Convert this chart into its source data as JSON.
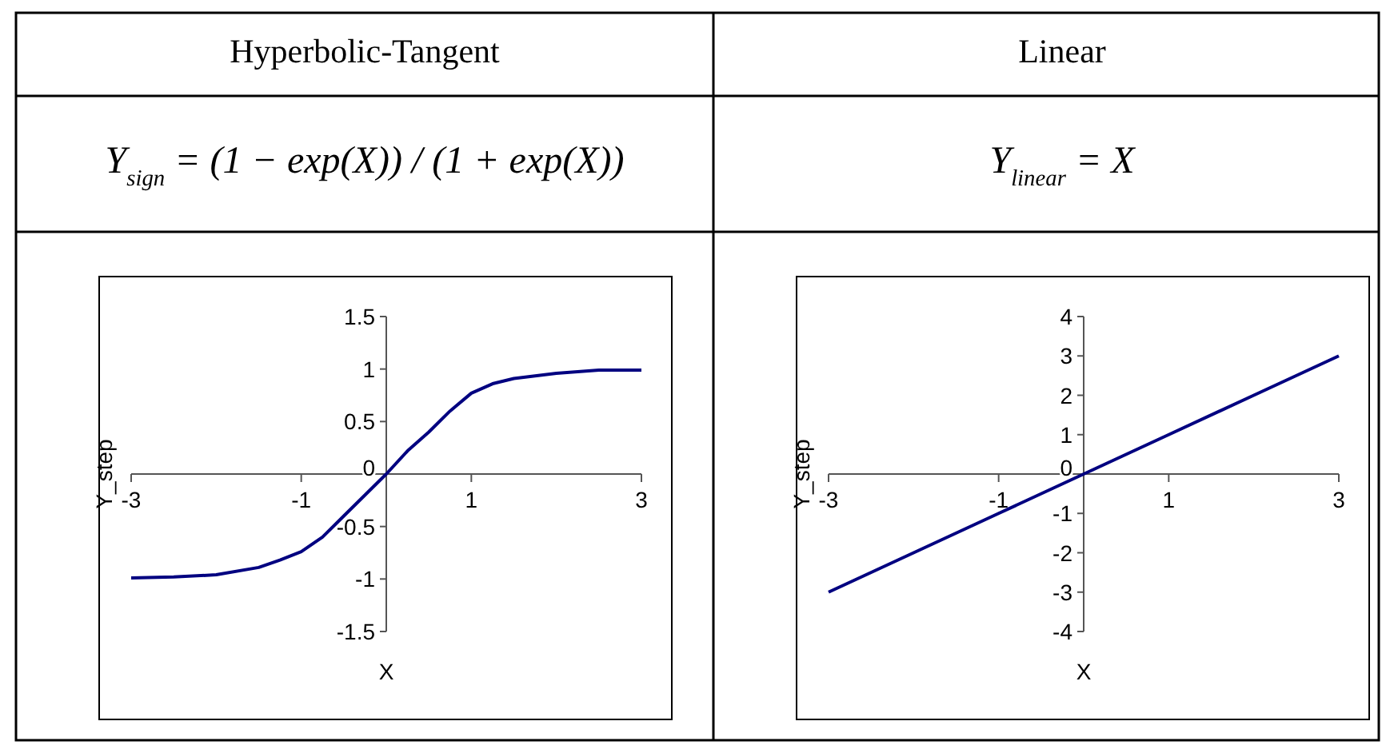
{
  "chart_data": [
    {
      "type": "line",
      "title": "Hyperbolic-Tangent",
      "subtitle": "Y$_{sign}$ = (1 − exp(X)) / (1 + exp(X))",
      "xlabel": "X",
      "ylabel": "Y_step",
      "x": [
        -3,
        -2.5,
        -2,
        -1.5,
        -1.25,
        -1,
        -0.75,
        -0.5,
        -0.25,
        0,
        0.25,
        0.5,
        0.75,
        1,
        1.25,
        1.5,
        2,
        2.5,
        3
      ],
      "series": [
        {
          "color": "#000080",
          "values": [
            -0.99,
            -0.98,
            -0.96,
            -0.89,
            -0.82,
            -0.74,
            -0.6,
            -0.4,
            -0.2,
            0,
            0.22,
            0.4,
            0.6,
            0.77,
            0.86,
            0.91,
            0.96,
            0.99,
            0.99
          ]
        }
      ],
      "xlim": [
        -3,
        3
      ],
      "xticks": [
        -3,
        -1,
        1,
        3
      ],
      "ylim": [
        -1.5,
        1.5
      ],
      "yticks": [
        -1.5,
        -1,
        -0.5,
        0,
        0.5,
        1,
        1.5
      ],
      "grid": false
    },
    {
      "type": "line",
      "title": "Linear",
      "subtitle": "Y$_{linear}$ = X",
      "xlabel": "X",
      "ylabel": "Y_step",
      "x": [
        -3,
        -2,
        -1,
        0,
        1,
        2,
        3
      ],
      "series": [
        {
          "color": "#000080",
          "values": [
            -3,
            -2,
            -1,
            0,
            1,
            2,
            3
          ]
        }
      ],
      "xlim": [
        -3,
        3
      ],
      "xticks": [
        -3,
        -1,
        1,
        3
      ],
      "ylim": [
        -4,
        4
      ],
      "yticks": [
        -4,
        -3,
        -2,
        -1,
        0,
        1,
        2,
        3,
        4
      ],
      "grid": false
    }
  ]
}
